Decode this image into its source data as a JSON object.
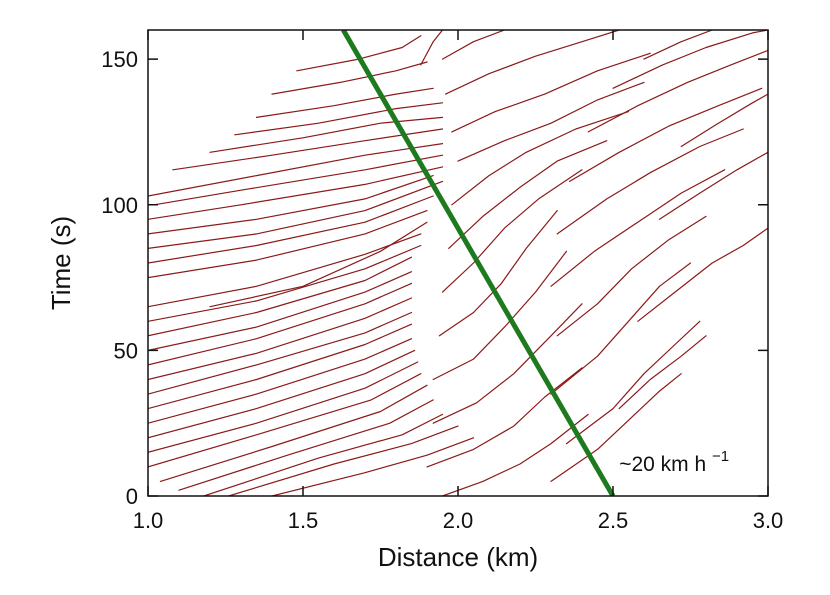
{
  "chart_data": {
    "type": "line",
    "title": "",
    "xlabel": "Distance (km)",
    "ylabel": "Time (s)",
    "xlim": [
      1.0,
      3.0
    ],
    "ylim": [
      0,
      160
    ],
    "xticks": [
      {
        "value": 1.0,
        "label": "1.0"
      },
      {
        "value": 1.5,
        "label": "1.5"
      },
      {
        "value": 2.0,
        "label": "2.0"
      },
      {
        "value": 2.5,
        "label": "2.5"
      },
      {
        "value": 3.0,
        "label": "3.0"
      }
    ],
    "yticks": [
      {
        "value": 0,
        "label": "0"
      },
      {
        "value": 50,
        "label": "50"
      },
      {
        "value": 100,
        "label": "100"
      },
      {
        "value": 150,
        "label": "150"
      }
    ],
    "grid": false,
    "trajectory_color": "#8b1a1a",
    "wave_line": {
      "color": "#1e7a1e",
      "points": [
        [
          1.63,
          160
        ],
        [
          2.5,
          0
        ]
      ]
    },
    "annotation": {
      "text": "~20 km h",
      "superscript": "−1",
      "x": 2.52,
      "y": 10
    },
    "trajectories": [
      [
        [
          1.4,
          0
        ],
        [
          1.7,
          8
        ],
        [
          1.9,
          14
        ],
        [
          2.05,
          20
        ]
      ],
      [
        [
          1.26,
          0
        ],
        [
          1.6,
          11
        ],
        [
          1.85,
          18
        ],
        [
          2.0,
          24
        ]
      ],
      [
        [
          1.18,
          0
        ],
        [
          1.55,
          13
        ],
        [
          1.82,
          21
        ],
        [
          1.95,
          28
        ]
      ],
      [
        [
          1.1,
          2
        ],
        [
          1.45,
          14
        ],
        [
          1.78,
          25
        ],
        [
          1.92,
          33
        ]
      ],
      [
        [
          1.04,
          5
        ],
        [
          1.4,
          17
        ],
        [
          1.75,
          29
        ],
        [
          1.9,
          38
        ]
      ],
      [
        [
          1.0,
          10
        ],
        [
          1.35,
          21
        ],
        [
          1.72,
          33
        ],
        [
          1.88,
          42
        ]
      ],
      [
        [
          1.0,
          15
        ],
        [
          1.35,
          25
        ],
        [
          1.7,
          37
        ],
        [
          1.87,
          46
        ]
      ],
      [
        [
          1.0,
          20
        ],
        [
          1.35,
          30
        ],
        [
          1.7,
          42
        ],
        [
          1.86,
          50
        ]
      ],
      [
        [
          1.0,
          25
        ],
        [
          1.35,
          35
        ],
        [
          1.7,
          47
        ],
        [
          1.85,
          54
        ]
      ],
      [
        [
          1.0,
          30
        ],
        [
          1.35,
          40
        ],
        [
          1.7,
          52
        ],
        [
          1.85,
          59
        ]
      ],
      [
        [
          1.0,
          35
        ],
        [
          1.35,
          45
        ],
        [
          1.7,
          56
        ],
        [
          1.85,
          63
        ]
      ],
      [
        [
          1.0,
          40
        ],
        [
          1.35,
          49
        ],
        [
          1.7,
          61
        ],
        [
          1.85,
          68
        ]
      ],
      [
        [
          1.0,
          45
        ],
        [
          1.35,
          54
        ],
        [
          1.7,
          66
        ],
        [
          1.85,
          73
        ]
      ],
      [
        [
          1.0,
          50
        ],
        [
          1.35,
          58
        ],
        [
          1.7,
          70
        ],
        [
          1.85,
          77
        ]
      ],
      [
        [
          1.0,
          55
        ],
        [
          1.35,
          63
        ],
        [
          1.7,
          74
        ],
        [
          1.85,
          82
        ]
      ],
      [
        [
          1.0,
          60
        ],
        [
          1.35,
          67
        ],
        [
          1.7,
          78
        ],
        [
          1.88,
          86
        ]
      ],
      [
        [
          1.0,
          65
        ],
        [
          1.35,
          72
        ],
        [
          1.7,
          83
        ],
        [
          1.88,
          90
        ]
      ],
      [
        [
          1.2,
          65
        ],
        [
          1.5,
          72
        ],
        [
          1.75,
          84
        ],
        [
          1.9,
          94
        ]
      ],
      [
        [
          1.0,
          75
        ],
        [
          1.35,
          81
        ],
        [
          1.7,
          90
        ],
        [
          1.9,
          98
        ]
      ],
      [
        [
          1.0,
          80
        ],
        [
          1.35,
          86
        ],
        [
          1.7,
          94
        ],
        [
          1.92,
          103
        ]
      ],
      [
        [
          1.0,
          85
        ],
        [
          1.35,
          90
        ],
        [
          1.7,
          98
        ],
        [
          1.95,
          108
        ]
      ],
      [
        [
          1.0,
          90
        ],
        [
          1.35,
          95
        ],
        [
          1.7,
          102
        ],
        [
          1.92,
          110
        ]
      ],
      [
        [
          1.0,
          95
        ],
        [
          1.3,
          100
        ],
        [
          1.7,
          107
        ],
        [
          1.95,
          113
        ]
      ],
      [
        [
          1.02,
          100
        ],
        [
          1.3,
          105
        ],
        [
          1.7,
          112
        ],
        [
          1.95,
          117
        ]
      ],
      [
        [
          1.0,
          103
        ],
        [
          1.35,
          110
        ],
        [
          1.7,
          117
        ],
        [
          1.95,
          121
        ]
      ],
      [
        [
          1.08,
          112
        ],
        [
          1.4,
          117
        ],
        [
          1.7,
          122
        ],
        [
          1.95,
          126
        ]
      ],
      [
        [
          1.2,
          118
        ],
        [
          1.5,
          123
        ],
        [
          1.75,
          128
        ],
        [
          1.95,
          130
        ]
      ],
      [
        [
          1.28,
          124
        ],
        [
          1.55,
          128
        ],
        [
          1.8,
          133
        ],
        [
          1.95,
          135
        ]
      ],
      [
        [
          1.35,
          130
        ],
        [
          1.6,
          134
        ],
        [
          1.8,
          138
        ],
        [
          1.92,
          140
        ]
      ],
      [
        [
          1.4,
          138
        ],
        [
          1.62,
          142
        ],
        [
          1.8,
          146
        ],
        [
          1.9,
          149
        ]
      ],
      [
        [
          1.48,
          146
        ],
        [
          1.68,
          150
        ],
        [
          1.82,
          154
        ],
        [
          1.88,
          158
        ]
      ],
      [
        [
          1.88,
          148
        ],
        [
          1.92,
          156
        ],
        [
          1.95,
          160
        ]
      ],
      [
        [
          1.95,
          0
        ],
        [
          2.08,
          5
        ],
        [
          2.2,
          11
        ],
        [
          2.3,
          18
        ],
        [
          2.42,
          28
        ]
      ],
      [
        [
          1.9,
          10
        ],
        [
          2.05,
          16
        ],
        [
          2.18,
          24
        ],
        [
          2.28,
          34
        ],
        [
          2.4,
          44
        ]
      ],
      [
        [
          1.92,
          25
        ],
        [
          2.06,
          32
        ],
        [
          2.18,
          42
        ],
        [
          2.3,
          55
        ],
        [
          2.4,
          66
        ]
      ],
      [
        [
          1.92,
          40
        ],
        [
          2.05,
          47
        ],
        [
          2.15,
          58
        ],
        [
          2.25,
          70
        ],
        [
          2.35,
          84
        ]
      ],
      [
        [
          1.94,
          55
        ],
        [
          2.05,
          63
        ],
        [
          2.14,
          73
        ],
        [
          2.22,
          85
        ],
        [
          2.32,
          98
        ]
      ],
      [
        [
          1.95,
          70
        ],
        [
          2.05,
          80
        ],
        [
          2.15,
          92
        ],
        [
          2.26,
          102
        ],
        [
          2.4,
          112
        ]
      ],
      [
        [
          1.97,
          85
        ],
        [
          2.08,
          96
        ],
        [
          2.2,
          106
        ],
        [
          2.32,
          115
        ],
        [
          2.48,
          122
        ]
      ],
      [
        [
          1.98,
          100
        ],
        [
          2.1,
          110
        ],
        [
          2.22,
          118
        ],
        [
          2.38,
          126
        ],
        [
          2.55,
          132
        ]
      ],
      [
        [
          2.0,
          115
        ],
        [
          2.15,
          122
        ],
        [
          2.3,
          128
        ],
        [
          2.45,
          136
        ],
        [
          2.6,
          142
        ]
      ],
      [
        [
          1.98,
          125
        ],
        [
          2.12,
          132
        ],
        [
          2.28,
          138
        ],
        [
          2.45,
          146
        ],
        [
          2.62,
          152
        ]
      ],
      [
        [
          1.96,
          138
        ],
        [
          2.1,
          145
        ],
        [
          2.25,
          151
        ],
        [
          2.4,
          156
        ],
        [
          2.52,
          160
        ]
      ],
      [
        [
          1.95,
          150
        ],
        [
          2.05,
          156
        ],
        [
          2.15,
          160
        ]
      ],
      [
        [
          2.3,
          5
        ],
        [
          2.45,
          16
        ],
        [
          2.55,
          26
        ],
        [
          2.65,
          36
        ],
        [
          2.72,
          42
        ]
      ],
      [
        [
          2.35,
          18
        ],
        [
          2.5,
          30
        ],
        [
          2.6,
          42
        ],
        [
          2.7,
          52
        ],
        [
          2.78,
          60
        ]
      ],
      [
        [
          2.3,
          35
        ],
        [
          2.45,
          48
        ],
        [
          2.55,
          60
        ],
        [
          2.65,
          72
        ],
        [
          2.75,
          80
        ]
      ],
      [
        [
          2.32,
          55
        ],
        [
          2.45,
          66
        ],
        [
          2.56,
          78
        ],
        [
          2.68,
          88
        ],
        [
          2.8,
          96
        ]
      ],
      [
        [
          2.3,
          72
        ],
        [
          2.44,
          84
        ],
        [
          2.58,
          94
        ],
        [
          2.72,
          104
        ],
        [
          2.86,
          112
        ]
      ],
      [
        [
          2.32,
          90
        ],
        [
          2.48,
          102
        ],
        [
          2.62,
          111
        ],
        [
          2.78,
          120
        ],
        [
          2.92,
          126
        ]
      ],
      [
        [
          2.36,
          108
        ],
        [
          2.52,
          118
        ],
        [
          2.68,
          127
        ],
        [
          2.84,
          134
        ],
        [
          2.98,
          140
        ]
      ],
      [
        [
          2.42,
          125
        ],
        [
          2.58,
          134
        ],
        [
          2.74,
          142
        ],
        [
          2.88,
          148
        ],
        [
          3.0,
          153
        ]
      ],
      [
        [
          2.5,
          140
        ],
        [
          2.66,
          148
        ],
        [
          2.8,
          154
        ],
        [
          2.95,
          159
        ],
        [
          3.0,
          160
        ]
      ],
      [
        [
          2.6,
          150
        ],
        [
          2.72,
          156
        ],
        [
          2.82,
          160
        ]
      ],
      [
        [
          2.52,
          30
        ],
        [
          2.62,
          40
        ],
        [
          2.72,
          48
        ],
        [
          2.8,
          55
        ]
      ],
      [
        [
          2.58,
          60
        ],
        [
          2.7,
          70
        ],
        [
          2.82,
          80
        ],
        [
          2.92,
          86
        ],
        [
          3.0,
          92
        ]
      ],
      [
        [
          2.65,
          95
        ],
        [
          2.78,
          104
        ],
        [
          2.9,
          112
        ],
        [
          3.0,
          118
        ]
      ],
      [
        [
          2.72,
          120
        ],
        [
          2.84,
          128
        ],
        [
          2.95,
          135
        ],
        [
          3.0,
          138
        ]
      ]
    ]
  }
}
